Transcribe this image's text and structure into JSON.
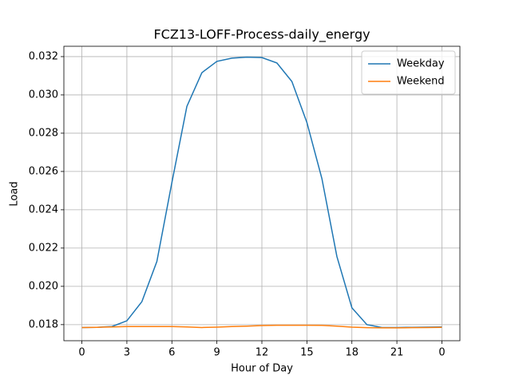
{
  "chart_data": {
    "type": "line",
    "title": "FCZ13-LOFF-Process-daily_energy",
    "xlabel": "Hour of Day",
    "ylabel": "Load",
    "x": [
      0,
      1,
      2,
      3,
      4,
      5,
      6,
      7,
      8,
      9,
      10,
      11,
      12,
      13,
      14,
      15,
      16,
      17,
      18,
      19,
      20,
      21,
      22,
      23,
      24
    ],
    "series": [
      {
        "name": "Weekday",
        "color": "#1f77b4",
        "values": [
          0.01785,
          0.01786,
          0.0179,
          0.0182,
          0.0192,
          0.0213,
          0.02542,
          0.0294,
          0.03116,
          0.03175,
          0.03192,
          0.03197,
          0.03195,
          0.03167,
          0.0307,
          0.02856,
          0.02563,
          0.02156,
          0.01888,
          0.018,
          0.01785,
          0.01785,
          0.01786,
          0.01787,
          0.01788
        ]
      },
      {
        "name": "Weekend",
        "color": "#ff7f0e",
        "values": [
          0.01785,
          0.01786,
          0.01788,
          0.0179,
          0.0179,
          0.0179,
          0.0179,
          0.01788,
          0.01785,
          0.01787,
          0.0179,
          0.01792,
          0.01795,
          0.01797,
          0.01797,
          0.01797,
          0.01796,
          0.01792,
          0.01787,
          0.01784,
          0.01783,
          0.01783,
          0.01784,
          0.01785,
          0.01786
        ]
      }
    ],
    "xlim": [
      -1.2,
      25.2
    ],
    "xticks": [
      0,
      3,
      6,
      9,
      12,
      15,
      18,
      21,
      {
        "value": 24,
        "label": "0"
      }
    ],
    "ylim": [
      0.01716,
      0.03254
    ],
    "yticks": [
      0.018,
      {
        "value": 0.02,
        "label": "0.020"
      },
      0.022,
      0.024,
      0.026,
      0.028,
      {
        "value": 0.03,
        "label": "0.030"
      },
      0.032
    ],
    "grid": true,
    "legend": "upper right"
  }
}
